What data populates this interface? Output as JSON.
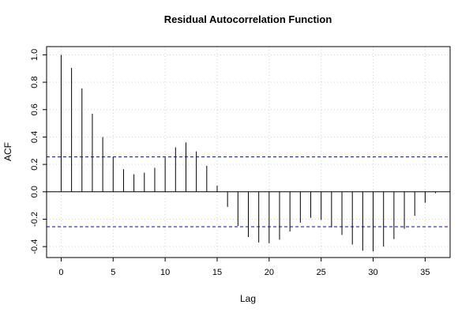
{
  "chart_data": {
    "type": "bar",
    "title": "Residual Autocorrelation Function",
    "xlabel": "Lag",
    "ylabel": "ACF",
    "xlim": [
      -1.4,
      37.4
    ],
    "ylim": [
      -0.48,
      1.06
    ],
    "x_ticks": [
      0,
      5,
      10,
      15,
      20,
      25,
      30,
      35
    ],
    "y_ticks": [
      -0.4,
      -0.2,
      0.0,
      0.2,
      0.4,
      0.6,
      0.8,
      1.0
    ],
    "grid": true,
    "confidence_bounds": [
      0.255,
      -0.255
    ],
    "colors": {
      "bars": "#000000",
      "bounds": "#0000cc",
      "zero_line": "#000000",
      "grid": "#d3d3d3"
    },
    "lags": [
      0,
      1,
      2,
      3,
      4,
      5,
      6,
      7,
      8,
      9,
      10,
      11,
      12,
      13,
      14,
      15,
      16,
      17,
      18,
      19,
      20,
      21,
      22,
      23,
      24,
      25,
      26,
      27,
      28,
      29,
      30,
      31,
      32,
      33,
      34,
      35,
      36
    ],
    "values": [
      1.0,
      0.905,
      0.755,
      0.57,
      0.4,
      0.255,
      0.165,
      0.128,
      0.14,
      0.175,
      0.25,
      0.325,
      0.36,
      0.295,
      0.19,
      0.045,
      -0.11,
      -0.25,
      -0.33,
      -0.37,
      -0.375,
      -0.35,
      -0.29,
      -0.225,
      -0.19,
      -0.205,
      -0.26,
      -0.315,
      -0.385,
      -0.43,
      -0.435,
      -0.4,
      -0.345,
      -0.27,
      -0.175,
      -0.08,
      -0.01
    ]
  }
}
